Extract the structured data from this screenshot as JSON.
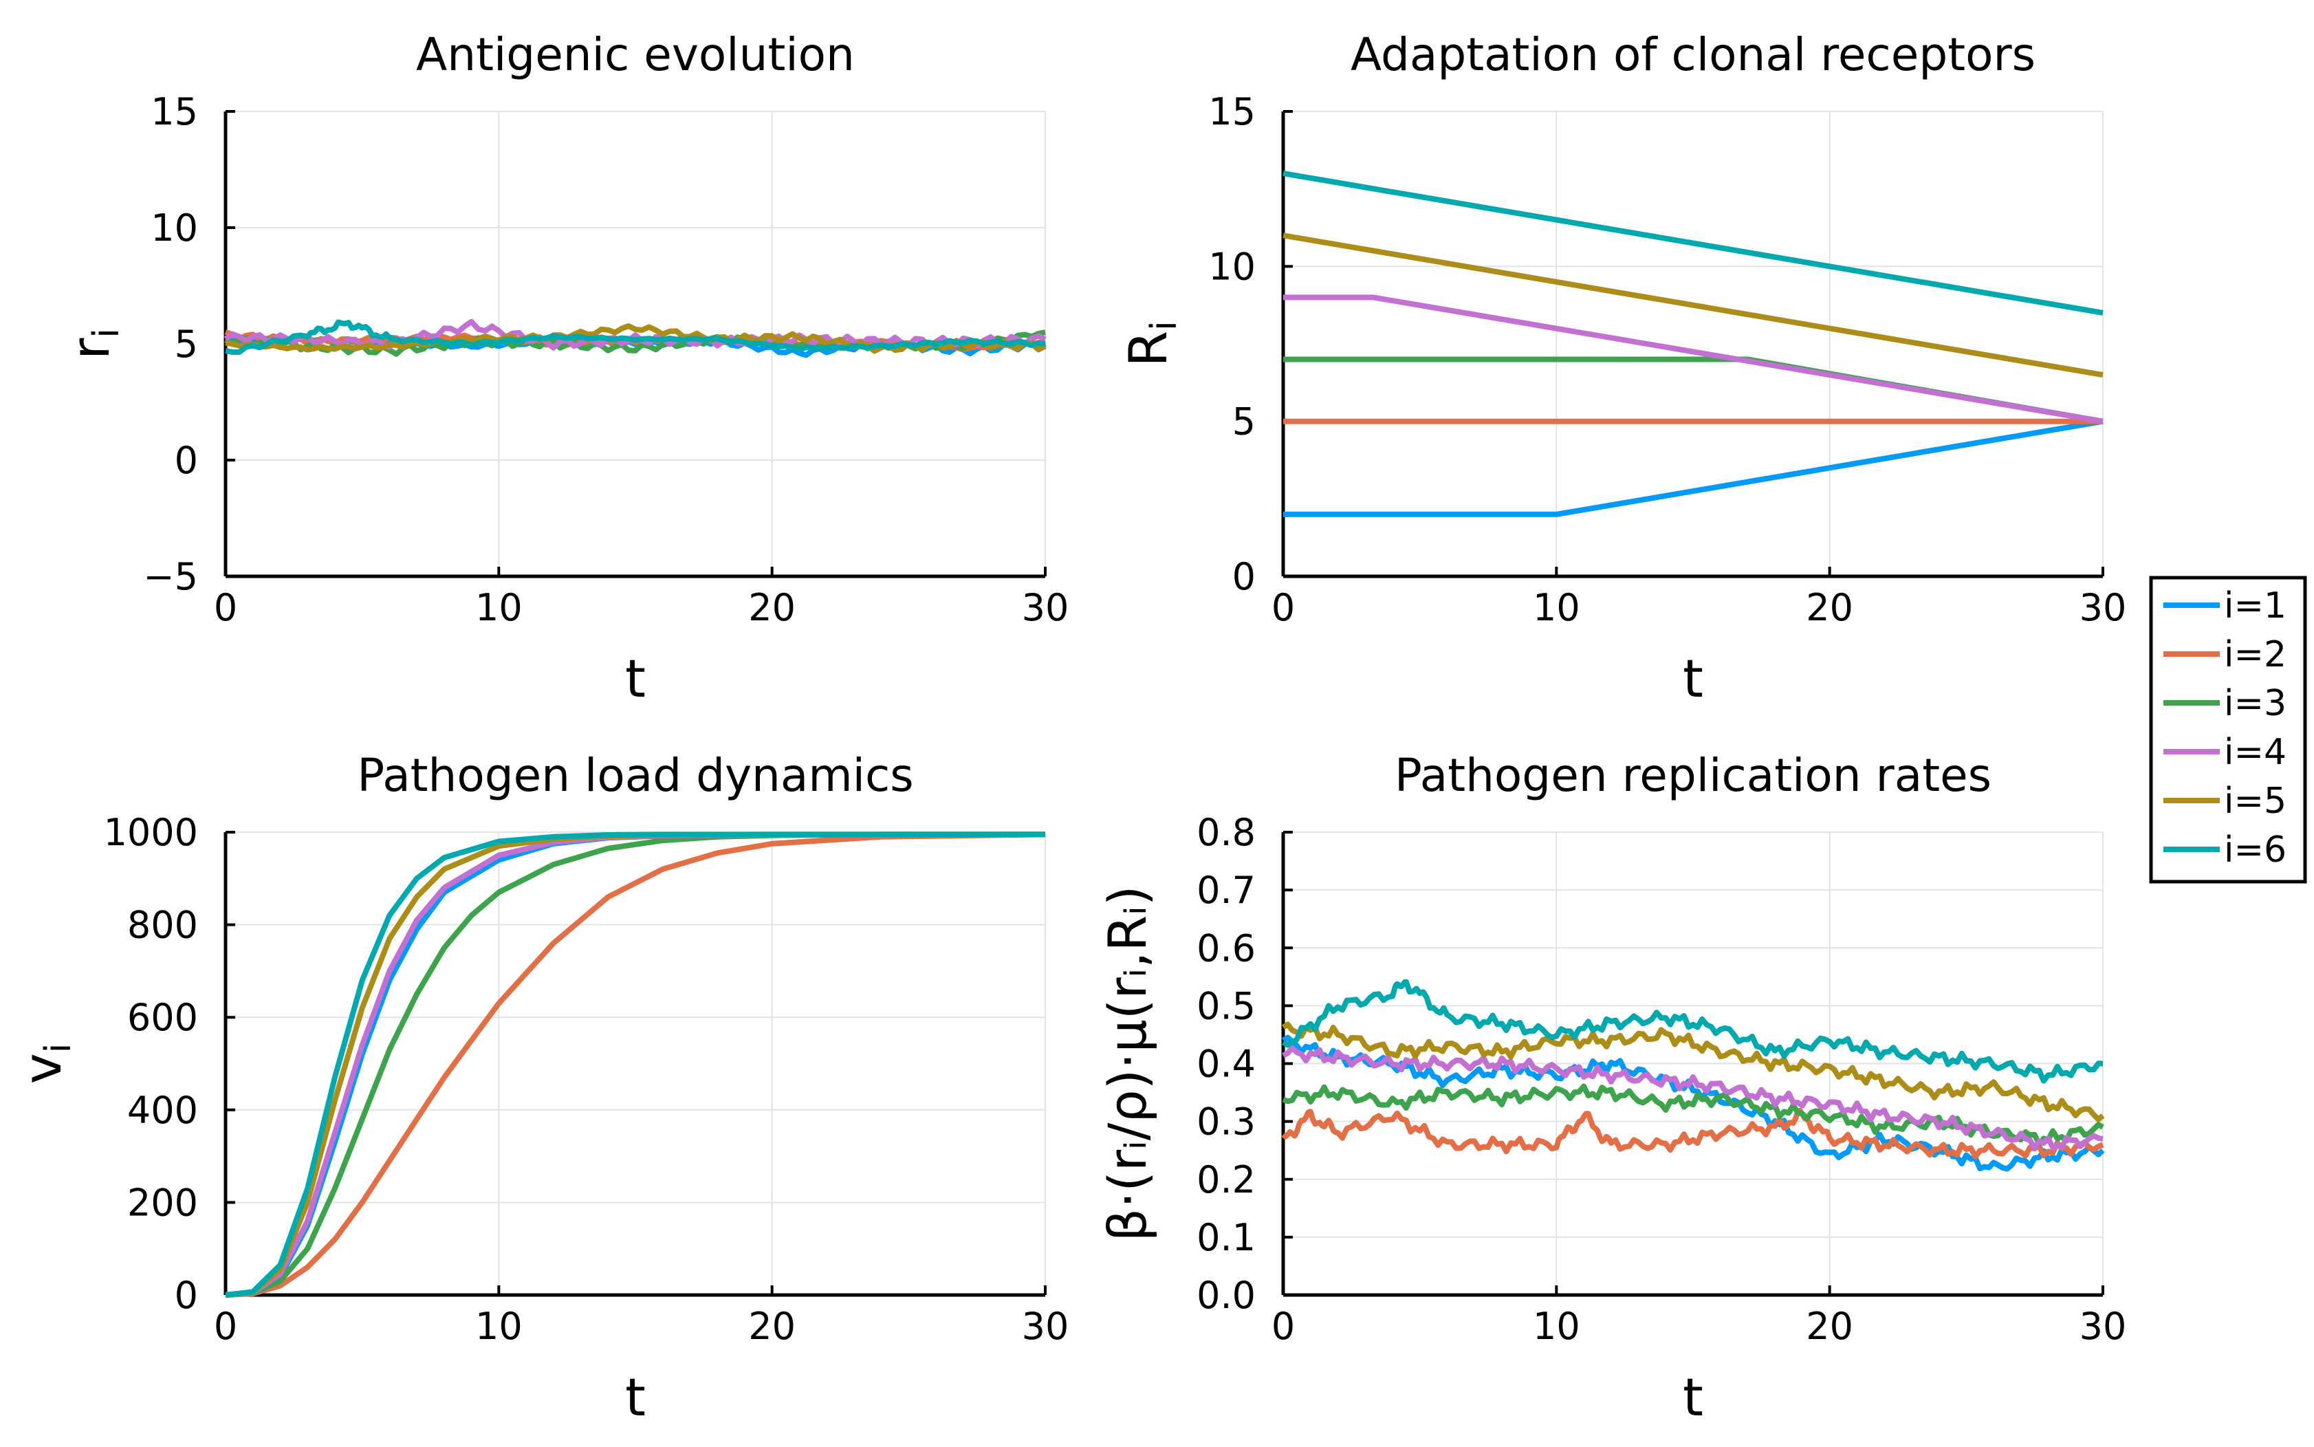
{
  "chart_data": [
    {
      "id": "p1",
      "type": "line",
      "title": "Antigenic evolution",
      "xlabel": "t",
      "ylabel": "r",
      "ylabel_sub": "i",
      "xlim": [
        0,
        30
      ],
      "ylim": [
        -5,
        15
      ],
      "xticks": [
        0,
        10,
        20,
        30
      ],
      "yticks": [
        -5,
        0,
        5,
        10,
        15
      ],
      "ytick_labels": [
        "−5",
        "0",
        "5",
        "10",
        "15"
      ],
      "series": [
        {
          "name": "i=1",
          "color": "#009af9",
          "t": [
            0,
            3,
            6,
            9,
            12,
            15,
            18,
            21,
            24,
            27,
            30
          ],
          "values": [
            5.1,
            5.2,
            5.0,
            4.9,
            5.1,
            5.0,
            5.1,
            4.6,
            5.0,
            4.7,
            5.0
          ]
        },
        {
          "name": "i=2",
          "color": "#e26f46",
          "t": [
            0,
            3,
            6,
            9,
            12,
            15,
            18,
            21,
            24,
            27,
            30
          ],
          "values": [
            5.4,
            5.1,
            5.2,
            5.3,
            5.0,
            5.1,
            5.2,
            5.0,
            5.1,
            4.8,
            5.1
          ]
        },
        {
          "name": "i=3",
          "color": "#3da44d",
          "t": [
            0,
            3,
            6,
            9,
            12,
            15,
            18,
            21,
            24,
            27,
            30
          ],
          "values": [
            5.2,
            4.9,
            4.7,
            5.1,
            5.0,
            4.8,
            5.2,
            5.0,
            4.9,
            4.9,
            5.5
          ]
        },
        {
          "name": "i=4",
          "color": "#c271d2",
          "t": [
            0,
            3,
            6,
            9,
            12,
            15,
            18,
            21,
            24,
            27,
            30
          ],
          "values": [
            5.3,
            5.2,
            5.0,
            5.8,
            5.0,
            5.2,
            5.1,
            5.2,
            5.1,
            5.1,
            5.2
          ]
        },
        {
          "name": "i=5",
          "color": "#ac8d18",
          "t": [
            0,
            3,
            6,
            9,
            12,
            15,
            18,
            21,
            24,
            27,
            30
          ],
          "values": [
            5.0,
            4.8,
            4.9,
            5.2,
            5.3,
            5.7,
            5.2,
            5.3,
            4.8,
            5.0,
            4.9
          ]
        },
        {
          "name": "i=6",
          "color": "#00a9ad",
          "t": [
            0,
            3,
            4.5,
            6,
            9,
            12,
            15,
            18,
            21,
            24,
            27,
            30
          ],
          "values": [
            4.6,
            5.4,
            5.9,
            5.2,
            5.0,
            5.3,
            5.2,
            5.2,
            4.8,
            4.9,
            5.1,
            5.0
          ]
        }
      ]
    },
    {
      "id": "p2",
      "type": "line",
      "title": "Adaptation of clonal receptors",
      "xlabel": "t",
      "ylabel": "R",
      "ylabel_sub": "i",
      "xlim": [
        0,
        30
      ],
      "ylim": [
        0,
        15
      ],
      "xticks": [
        0,
        10,
        20,
        30
      ],
      "yticks": [
        0,
        5,
        10,
        15
      ],
      "ytick_labels": [
        "0",
        "5",
        "10",
        "15"
      ],
      "series": [
        {
          "name": "i=1",
          "color": "#009af9",
          "t": [
            0,
            10,
            30
          ],
          "values": [
            2,
            2,
            5
          ]
        },
        {
          "name": "i=2",
          "color": "#e26f46",
          "t": [
            0,
            30
          ],
          "values": [
            5,
            5
          ]
        },
        {
          "name": "i=3",
          "color": "#3da44d",
          "t": [
            0,
            17,
            30
          ],
          "values": [
            7,
            7,
            5
          ]
        },
        {
          "name": "i=4",
          "color": "#c271d2",
          "t": [
            0,
            3.3,
            30
          ],
          "values": [
            9,
            9,
            5
          ]
        },
        {
          "name": "i=5",
          "color": "#ac8d18",
          "t": [
            0,
            30
          ],
          "values": [
            11,
            6.5
          ]
        },
        {
          "name": "i=6",
          "color": "#00a9ad",
          "t": [
            0,
            30
          ],
          "values": [
            13,
            8.5
          ]
        }
      ]
    },
    {
      "id": "p3",
      "type": "line",
      "title": "Pathogen load dynamics",
      "xlabel": "t",
      "ylabel": "v",
      "ylabel_sub": "i",
      "xlim": [
        0,
        30
      ],
      "ylim": [
        0,
        1000
      ],
      "xticks": [
        0,
        10,
        20,
        30
      ],
      "yticks": [
        0,
        200,
        400,
        600,
        800,
        1000
      ],
      "ytick_labels": [
        "0",
        "200",
        "400",
        "600",
        "800",
        "1000"
      ],
      "series": [
        {
          "name": "i=1",
          "color": "#009af9",
          "t": [
            0,
            1,
            2,
            3,
            4,
            5,
            6,
            7,
            8,
            10,
            12,
            14,
            16,
            20,
            24,
            30
          ],
          "values": [
            0,
            5,
            40,
            150,
            330,
            520,
            680,
            790,
            870,
            940,
            975,
            988,
            992,
            994,
            995,
            995
          ]
        },
        {
          "name": "i=2",
          "color": "#e26f46",
          "t": [
            0,
            1,
            2,
            3,
            4,
            5,
            6,
            7,
            8,
            9,
            10,
            12,
            14,
            16,
            18,
            20,
            24,
            30
          ],
          "values": [
            0,
            3,
            20,
            60,
            120,
            200,
            290,
            380,
            470,
            550,
            630,
            760,
            860,
            920,
            955,
            975,
            990,
            995
          ]
        },
        {
          "name": "i=3",
          "color": "#3da44d",
          "t": [
            0,
            1,
            2,
            3,
            4,
            5,
            6,
            7,
            8,
            9,
            10,
            12,
            14,
            16,
            18,
            20,
            24,
            30
          ],
          "values": [
            0,
            4,
            30,
            100,
            230,
            380,
            530,
            650,
            750,
            820,
            870,
            930,
            965,
            982,
            990,
            993,
            995,
            995
          ]
        },
        {
          "name": "i=4",
          "color": "#c271d2",
          "t": [
            0,
            1,
            2,
            3,
            4,
            5,
            6,
            7,
            8,
            10,
            12,
            14,
            16,
            20,
            24,
            30
          ],
          "values": [
            0,
            5,
            45,
            160,
            350,
            540,
            700,
            810,
            880,
            950,
            978,
            989,
            993,
            994,
            995,
            995
          ]
        },
        {
          "name": "i=5",
          "color": "#ac8d18",
          "t": [
            0,
            1,
            2,
            3,
            4,
            5,
            6,
            7,
            8,
            10,
            12,
            14,
            16,
            20,
            24,
            30
          ],
          "values": [
            0,
            6,
            55,
            200,
            420,
            620,
            770,
            860,
            920,
            970,
            985,
            992,
            994,
            995,
            995,
            995
          ]
        },
        {
          "name": "i=6",
          "color": "#00a9ad",
          "t": [
            0,
            1,
            2,
            3,
            4,
            5,
            6,
            7,
            8,
            10,
            12,
            14,
            16,
            20,
            24,
            30
          ],
          "values": [
            0,
            7,
            65,
            230,
            470,
            680,
            820,
            900,
            945,
            980,
            990,
            994,
            995,
            995,
            995,
            995
          ]
        }
      ]
    },
    {
      "id": "p4",
      "type": "line",
      "title": "Pathogen replication rates",
      "xlabel": "t",
      "ylabel": "β·(rᵢ/ρ)·μ(rᵢ,Rᵢ)",
      "xlim": [
        0,
        30
      ],
      "ylim": [
        0,
        0.8
      ],
      "xticks": [
        0,
        10,
        20,
        30
      ],
      "yticks": [
        0,
        0.1,
        0.2,
        0.3,
        0.4,
        0.5,
        0.6,
        0.7,
        0.8
      ],
      "ytick_labels": [
        "0.0",
        "0.1",
        "0.2",
        "0.3",
        "0.4",
        "0.5",
        "0.6",
        "0.7",
        "0.8"
      ],
      "series": [
        {
          "name": "i=1",
          "color": "#009af9",
          "t": [
            0,
            2,
            4,
            6,
            8,
            10,
            12,
            14,
            16,
            18,
            20,
            22,
            24,
            26,
            28,
            30
          ],
          "values": [
            0.44,
            0.41,
            0.4,
            0.37,
            0.39,
            0.38,
            0.4,
            0.37,
            0.34,
            0.3,
            0.24,
            0.27,
            0.25,
            0.22,
            0.24,
            0.25
          ]
        },
        {
          "name": "i=2",
          "color": "#e26f46",
          "t": [
            0,
            1,
            2,
            4,
            6,
            8,
            10,
            11,
            12,
            14,
            16,
            18,
            19,
            20,
            22,
            24,
            26,
            28,
            30
          ],
          "values": [
            0.27,
            0.31,
            0.28,
            0.31,
            0.26,
            0.26,
            0.26,
            0.31,
            0.26,
            0.26,
            0.28,
            0.29,
            0.31,
            0.27,
            0.26,
            0.25,
            0.25,
            0.25,
            0.26
          ]
        },
        {
          "name": "i=3",
          "color": "#3da44d",
          "t": [
            0,
            2,
            4,
            6,
            8,
            10,
            12,
            14,
            16,
            18,
            20,
            22,
            24,
            26,
            28,
            30
          ],
          "values": [
            0.34,
            0.35,
            0.33,
            0.35,
            0.34,
            0.35,
            0.35,
            0.33,
            0.34,
            0.32,
            0.31,
            0.29,
            0.3,
            0.28,
            0.27,
            0.29
          ]
        },
        {
          "name": "i=4",
          "color": "#c271d2",
          "t": [
            0,
            2,
            4,
            6,
            8,
            10,
            12,
            14,
            16,
            18,
            20,
            22,
            24,
            26,
            28,
            30
          ],
          "values": [
            0.42,
            0.41,
            0.4,
            0.4,
            0.4,
            0.39,
            0.38,
            0.37,
            0.36,
            0.34,
            0.33,
            0.31,
            0.3,
            0.28,
            0.26,
            0.27
          ]
        },
        {
          "name": "i=5",
          "color": "#ac8d18",
          "t": [
            0,
            2,
            4,
            6,
            8,
            10,
            12,
            14,
            16,
            18,
            20,
            22,
            24,
            26,
            28,
            30
          ],
          "values": [
            0.46,
            0.45,
            0.42,
            0.43,
            0.42,
            0.44,
            0.44,
            0.45,
            0.42,
            0.4,
            0.39,
            0.37,
            0.35,
            0.36,
            0.33,
            0.31
          ]
        },
        {
          "name": "i=6",
          "color": "#00a9ad",
          "t": [
            0,
            2,
            4,
            4.5,
            6,
            8,
            10,
            12,
            14,
            16,
            18,
            20,
            22,
            24,
            26,
            28,
            30
          ],
          "values": [
            0.43,
            0.5,
            0.52,
            0.54,
            0.48,
            0.47,
            0.45,
            0.47,
            0.48,
            0.46,
            0.42,
            0.44,
            0.42,
            0.41,
            0.4,
            0.38,
            0.4
          ]
        }
      ]
    }
  ],
  "legend": {
    "items": [
      {
        "label": "i=1",
        "color": "#009af9"
      },
      {
        "label": "i=2",
        "color": "#e26f46"
      },
      {
        "label": "i=3",
        "color": "#3da44d"
      },
      {
        "label": "i=4",
        "color": "#c271d2"
      },
      {
        "label": "i=5",
        "color": "#ac8d18"
      },
      {
        "label": "i=6",
        "color": "#00a9ad"
      }
    ]
  }
}
